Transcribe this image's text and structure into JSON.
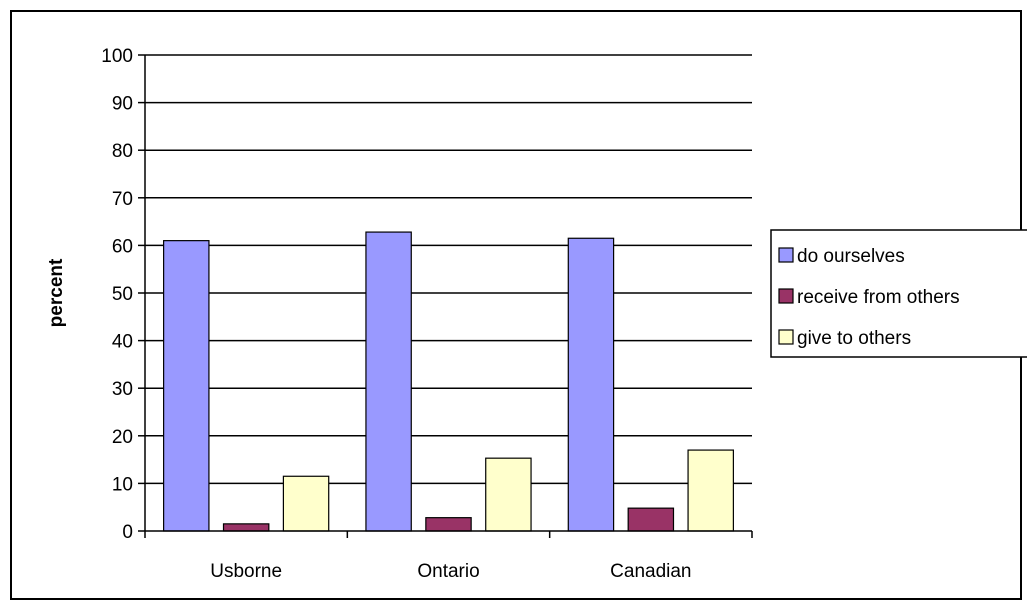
{
  "chart_data": {
    "type": "bar",
    "title": "",
    "xlabel": "",
    "ylabel": "percent",
    "ylim": [
      0,
      100
    ],
    "yticks": [
      0,
      10,
      20,
      30,
      40,
      50,
      60,
      70,
      80,
      90,
      100
    ],
    "categories": [
      "Usborne",
      "Ontario",
      "Canadian"
    ],
    "series": [
      {
        "name": "do ourselves",
        "values": [
          61.0,
          62.8,
          61.5
        ],
        "color": "#9999ff"
      },
      {
        "name": "receive from others",
        "values": [
          1.5,
          2.8,
          4.8
        ],
        "color": "#993366"
      },
      {
        "name": "give to others",
        "values": [
          11.5,
          15.3,
          17.0
        ],
        "color": "#ffffcc"
      }
    ],
    "grid": true,
    "legend": "right"
  }
}
